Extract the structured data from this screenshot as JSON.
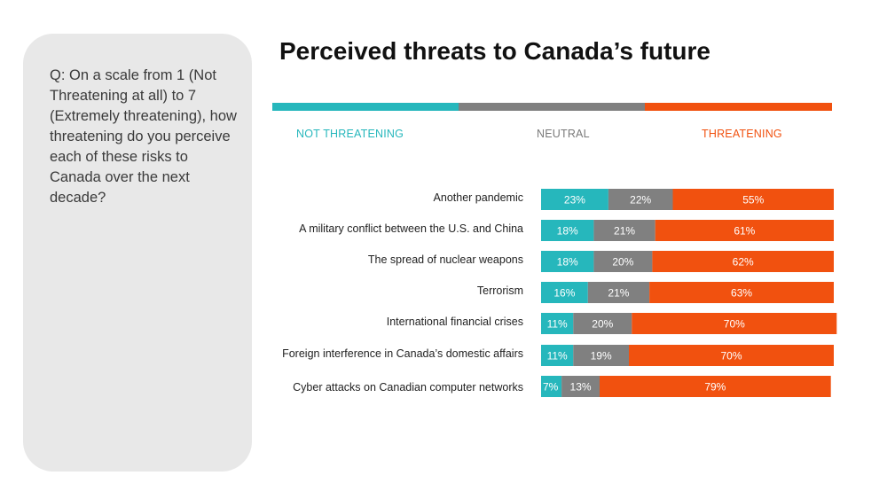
{
  "question": "Q: On a scale from 1 (Not Threatening at all) to 7 (Extremely threatening), how threatening do you perceive each of these risks to Canada over the next decade?",
  "chart_data": {
    "type": "bar",
    "stacked": true,
    "orientation": "horizontal",
    "title": "Perceived threats to Canada’s future",
    "categories": [
      "Another pandemic",
      "A military conflict between the U.S. and China",
      "The spread of nuclear weapons",
      "Terrorism",
      "International financial crises",
      "Foreign interference in Canada’s domestic affairs",
      "Cyber attacks on Canadian computer networks"
    ],
    "series": [
      {
        "name": "NOT THREATENING",
        "color": "#26b7bc",
        "values": [
          23,
          18,
          18,
          16,
          11,
          11,
          7
        ]
      },
      {
        "name": "NEUTRAL",
        "color": "#808080",
        "values": [
          22,
          21,
          20,
          21,
          20,
          19,
          13
        ]
      },
      {
        "name": "THREATENING",
        "color": "#f1510f",
        "values": [
          55,
          61,
          62,
          63,
          70,
          70,
          79
        ]
      }
    ],
    "value_suffix": "%",
    "xlim": [
      0,
      100
    ]
  }
}
